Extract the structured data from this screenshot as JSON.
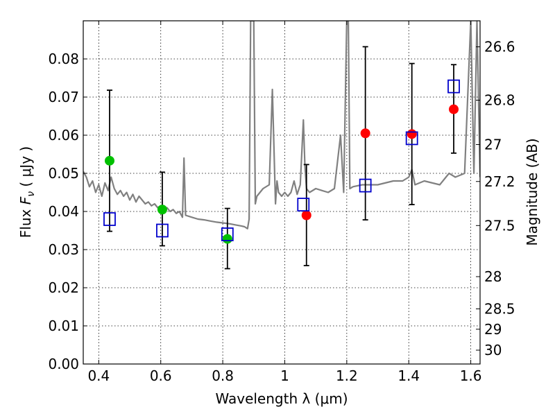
{
  "chart_data": {
    "type": "scatter",
    "title": "",
    "xlabel": "Wavelength  λ (μm)",
    "ylabel": "Flux  F_ν  ( μJy )",
    "ylabel_parts": {
      "prefix": "Flux  ",
      "symbol": "F",
      "subscript": "ν",
      "suffix": "  ( μJy )"
    },
    "y2label": "Magnitude (AB)",
    "xlim": [
      0.35,
      1.63
    ],
    "ylim": [
      0.0,
      0.09
    ],
    "grid": true,
    "x_ticks": [
      0.4,
      0.6,
      0.8,
      1.0,
      1.2,
      1.4,
      1.6
    ],
    "x_tick_labels": [
      "0.4",
      "0.6",
      "0.8",
      "1",
      "1.2",
      "1.4",
      "1.6"
    ],
    "y_ticks": [
      0.0,
      0.01,
      0.02,
      0.03,
      0.04,
      0.05,
      0.06,
      0.07,
      0.08
    ],
    "y_tick_labels": [
      "0.00",
      "0.01",
      "0.02",
      "0.03",
      "0.04",
      "0.05",
      "0.06",
      "0.07",
      "0.08"
    ],
    "right_axis_ticks": [
      {
        "label": "26.6",
        "mag": 26.6
      },
      {
        "label": "26.8",
        "mag": 26.8
      },
      {
        "label": "27",
        "mag": 27.0
      },
      {
        "label": "27.2",
        "mag": 27.2
      },
      {
        "label": "27.5",
        "mag": 27.5
      },
      {
        "label": "28",
        "mag": 28.0
      },
      {
        "label": "28.5",
        "mag": 28.5
      },
      {
        "label": "29",
        "mag": 29.0
      },
      {
        "label": "30",
        "mag": 30.0
      }
    ],
    "series": [
      {
        "name": "model spectrum",
        "kind": "line",
        "color": "#808080",
        "x": [
          0.35,
          0.36,
          0.37,
          0.38,
          0.39,
          0.4,
          0.41,
          0.42,
          0.43,
          0.44,
          0.45,
          0.46,
          0.47,
          0.48,
          0.49,
          0.5,
          0.51,
          0.52,
          0.53,
          0.54,
          0.55,
          0.56,
          0.57,
          0.58,
          0.59,
          0.6,
          0.61,
          0.62,
          0.63,
          0.64,
          0.65,
          0.66,
          0.67,
          0.675,
          0.68,
          0.7,
          0.72,
          0.74,
          0.76,
          0.78,
          0.8,
          0.82,
          0.84,
          0.86,
          0.87,
          0.88,
          0.885,
          0.89,
          0.895,
          0.9,
          0.905,
          0.91,
          0.93,
          0.95,
          0.96,
          0.97,
          0.975,
          0.98,
          0.99,
          1.0,
          1.01,
          1.02,
          1.03,
          1.04,
          1.05,
          1.06,
          1.065,
          1.07,
          1.08,
          1.1,
          1.12,
          1.14,
          1.16,
          1.18,
          1.19,
          1.2,
          1.205,
          1.21,
          1.22,
          1.25,
          1.3,
          1.35,
          1.38,
          1.4,
          1.41,
          1.42,
          1.45,
          1.5,
          1.52,
          1.53,
          1.55,
          1.58,
          1.6,
          1.61,
          1.62,
          1.63
        ],
        "y": [
          0.0505,
          0.049,
          0.0465,
          0.048,
          0.045,
          0.047,
          0.044,
          0.0475,
          0.0455,
          0.049,
          0.046,
          0.0445,
          0.0455,
          0.044,
          0.045,
          0.043,
          0.0445,
          0.0425,
          0.044,
          0.043,
          0.042,
          0.0425,
          0.0415,
          0.042,
          0.041,
          0.0415,
          0.0405,
          0.041,
          0.04,
          0.0405,
          0.0395,
          0.04,
          0.0385,
          0.054,
          0.039,
          0.0385,
          0.038,
          0.0378,
          0.0375,
          0.0372,
          0.037,
          0.0368,
          0.0365,
          0.0362,
          0.036,
          0.0355,
          0.038,
          0.09,
          0.09,
          0.09,
          0.042,
          0.044,
          0.046,
          0.047,
          0.072,
          0.042,
          0.048,
          0.045,
          0.044,
          0.045,
          0.044,
          0.045,
          0.048,
          0.0445,
          0.047,
          0.064,
          0.052,
          0.046,
          0.045,
          0.046,
          0.0455,
          0.045,
          0.046,
          0.06,
          0.045,
          0.09,
          0.09,
          0.046,
          0.0465,
          0.047,
          0.047,
          0.048,
          0.048,
          0.049,
          0.051,
          0.047,
          0.048,
          0.047,
          0.049,
          0.05,
          0.049,
          0.05,
          0.09,
          0.05,
          0.09,
          0.049
        ]
      },
      {
        "name": "observed (green)",
        "kind": "scatter",
        "marker": "circle",
        "color": "#00c000",
        "x": [
          0.435,
          0.605,
          0.815
        ],
        "y": [
          0.0533,
          0.0405,
          0.0328
        ]
      },
      {
        "name": "observed (red)",
        "kind": "scatter",
        "marker": "circle",
        "color": "#ff0000",
        "x": [
          1.07,
          1.26,
          1.41,
          1.545
        ],
        "y": [
          0.039,
          0.0605,
          0.0603,
          0.0668
        ]
      },
      {
        "name": "model photometry",
        "kind": "scatter",
        "marker": "square-open",
        "color": "#0000cc",
        "x": [
          0.435,
          0.605,
          0.815,
          1.06,
          1.26,
          1.41,
          1.545
        ],
        "y": [
          0.038,
          0.035,
          0.034,
          0.0418,
          0.0468,
          0.0592,
          0.0728
        ]
      }
    ],
    "errorbars": [
      {
        "x": 0.435,
        "low": 0.0348,
        "high": 0.0718
      },
      {
        "x": 0.605,
        "low": 0.031,
        "high": 0.0503
      },
      {
        "x": 0.815,
        "low": 0.025,
        "high": 0.0408
      },
      {
        "x": 1.07,
        "low": 0.0258,
        "high": 0.0523
      },
      {
        "x": 1.26,
        "low": 0.0378,
        "high": 0.0832
      },
      {
        "x": 1.41,
        "low": 0.0418,
        "high": 0.0788
      },
      {
        "x": 1.545,
        "low": 0.0553,
        "high": 0.0785
      }
    ]
  }
}
